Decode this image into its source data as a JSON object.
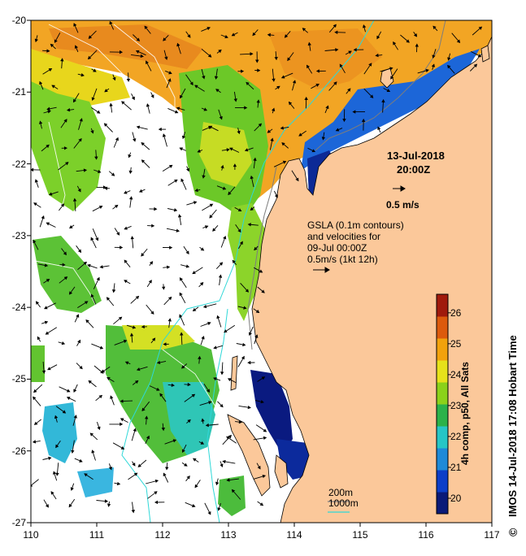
{
  "map": {
    "date": "13-Jul-2018",
    "time": "20:00Z",
    "scale_arrow_label": "0.5 m/s",
    "gsla_lines": [
      "GSLA (0.1m contours)",
      "and velocities for",
      "09-Jul 00:00Z",
      "0.5m/s (1kt 12h)"
    ],
    "isobath_labels": [
      "200m",
      "1000m"
    ],
    "isobath_colors": {
      "200m": "#7d7d7d",
      "1000m": "#2fd8d8"
    },
    "x_ticks": [
      "110",
      "111",
      "112",
      "113",
      "114",
      "115",
      "116",
      "117"
    ],
    "y_ticks": [
      "-20",
      "-21",
      "-22",
      "-23",
      "-24",
      "-25",
      "-26",
      "-27"
    ],
    "lon_range": [
      110,
      117
    ],
    "lat_range": [
      -27,
      -20
    ],
    "land_color": "#fbc89a"
  },
  "colorbar": {
    "title": "4h comp, p50, All Sats",
    "ticks": [
      "20",
      "21",
      "22",
      "23",
      "24",
      "25",
      "26"
    ],
    "range": [
      19.5,
      26.6
    ],
    "colors": [
      "#0a1a78",
      "#0c3ec8",
      "#1e8ad8",
      "#27c6c6",
      "#2bb24a",
      "#8bd21a",
      "#e6e21a",
      "#f2a20c",
      "#dc5a0c",
      "#a01a0c"
    ]
  },
  "credit": "IMOS 14-Jul-2018 17:08 Hobart Time",
  "copyright_symbol": "©"
}
